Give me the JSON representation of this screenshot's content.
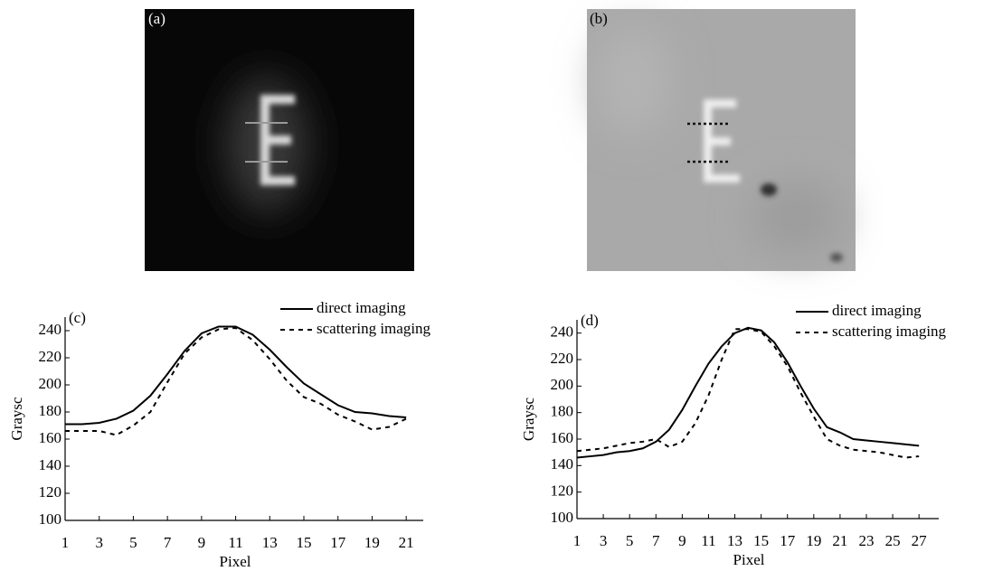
{
  "images": [
    {
      "label": "(a)"
    },
    {
      "label": "(b)"
    }
  ],
  "chart_data": [
    {
      "type": "line",
      "annotation": "(c)",
      "x_label": "Pixel",
      "y_label": "Graysc",
      "x": [
        1,
        2,
        3,
        4,
        5,
        6,
        7,
        8,
        9,
        10,
        11,
        12,
        13,
        14,
        15,
        16,
        17,
        18,
        19,
        20,
        21
      ],
      "series": [
        {
          "name": "direct imaging",
          "color": "#000000",
          "dash": false,
          "values": [
            171,
            171,
            172,
            175,
            181,
            192,
            208,
            225,
            238,
            243,
            243,
            237,
            226,
            213,
            201,
            193,
            185,
            180,
            179,
            177,
            176
          ]
        },
        {
          "name": "scattering imaging",
          "color": "#000000",
          "dash": true,
          "values": [
            166,
            166,
            166,
            163,
            170,
            180,
            202,
            223,
            235,
            241,
            242,
            233,
            219,
            203,
            191,
            186,
            178,
            173,
            167,
            169,
            175
          ]
        }
      ],
      "xlim": [
        1,
        22
      ],
      "xticks": [
        1,
        3,
        5,
        7,
        9,
        11,
        13,
        15,
        17,
        19,
        21
      ],
      "ylim": [
        100,
        250
      ],
      "yticks": [
        100,
        120,
        140,
        160,
        180,
        200,
        220,
        240
      ],
      "grid": false,
      "legend": "top-right"
    },
    {
      "type": "line",
      "annotation": "(d)",
      "x_label": "Pixel",
      "y_label": "Graysc",
      "x": [
        1,
        2,
        3,
        4,
        5,
        6,
        7,
        8,
        9,
        10,
        11,
        12,
        13,
        14,
        15,
        16,
        17,
        18,
        19,
        20,
        21,
        22,
        23,
        24,
        25,
        26,
        27
      ],
      "series": [
        {
          "name": "direct imaging",
          "color": "#000000",
          "dash": false,
          "values": [
            146,
            147,
            148,
            150,
            151,
            153,
            158,
            167,
            182,
            200,
            217,
            230,
            240,
            244,
            242,
            233,
            218,
            200,
            183,
            169,
            165,
            160,
            159,
            158,
            157,
            156,
            155
          ]
        },
        {
          "name": "scattering imaging",
          "color": "#000000",
          "dash": true,
          "values": [
            151,
            152,
            153,
            155,
            157,
            158,
            160,
            154,
            158,
            172,
            193,
            220,
            243,
            243,
            241,
            230,
            215,
            195,
            177,
            160,
            155,
            152,
            151,
            150,
            148,
            146,
            147
          ]
        }
      ],
      "xlim": [
        1,
        28.5
      ],
      "xticks": [
        1,
        3,
        5,
        7,
        9,
        11,
        13,
        15,
        17,
        19,
        21,
        23,
        25,
        27
      ],
      "ylim": [
        100,
        250
      ],
      "yticks": [
        100,
        120,
        140,
        160,
        180,
        200,
        220,
        240
      ],
      "grid": false,
      "legend": "top-right"
    }
  ]
}
